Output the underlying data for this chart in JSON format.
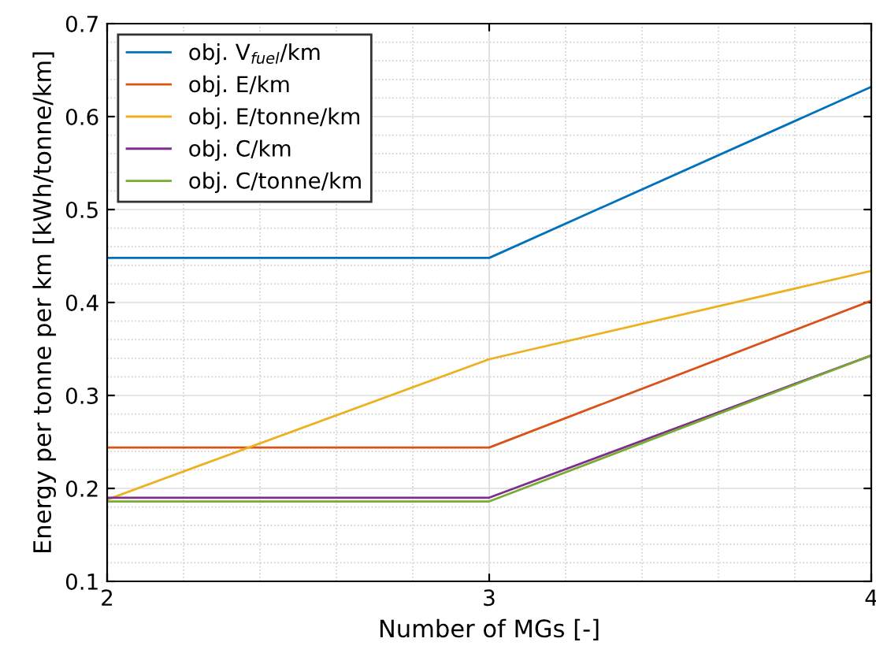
{
  "chart_data": {
    "type": "line",
    "xlabel": "Number of MGs [-]",
    "ylabel": "Energy per tonne per km [kWh/tonne/km]",
    "x": [
      2,
      3,
      4
    ],
    "xlim": [
      2,
      4
    ],
    "xticks": [
      2,
      3,
      4
    ],
    "ylim": [
      0.1,
      0.7
    ],
    "yticks": [
      0.1,
      0.2,
      0.3,
      0.4,
      0.5,
      0.6,
      0.7
    ],
    "grid": true,
    "legend": "top left",
    "line_style": "solid",
    "marker": "none",
    "series": [
      {
        "name": "obj. V$_{fuel}$/km",
        "color": "#0072bd",
        "values": [
          0.448,
          0.448,
          0.632
        ]
      },
      {
        "name": "obj. E/km",
        "color": "#d95319",
        "values": [
          0.244,
          0.244,
          0.402
        ]
      },
      {
        "name": "obj. E/tonne/km",
        "color": "#edb120",
        "values": [
          0.188,
          0.339,
          0.434
        ]
      },
      {
        "name": "obj. C/km",
        "color": "#7e2f8e",
        "values": [
          0.19,
          0.19,
          0.343
        ]
      },
      {
        "name": "obj. C/tonne/km",
        "color": "#77ac30",
        "values": [
          0.186,
          0.186,
          0.343
        ]
      }
    ]
  }
}
